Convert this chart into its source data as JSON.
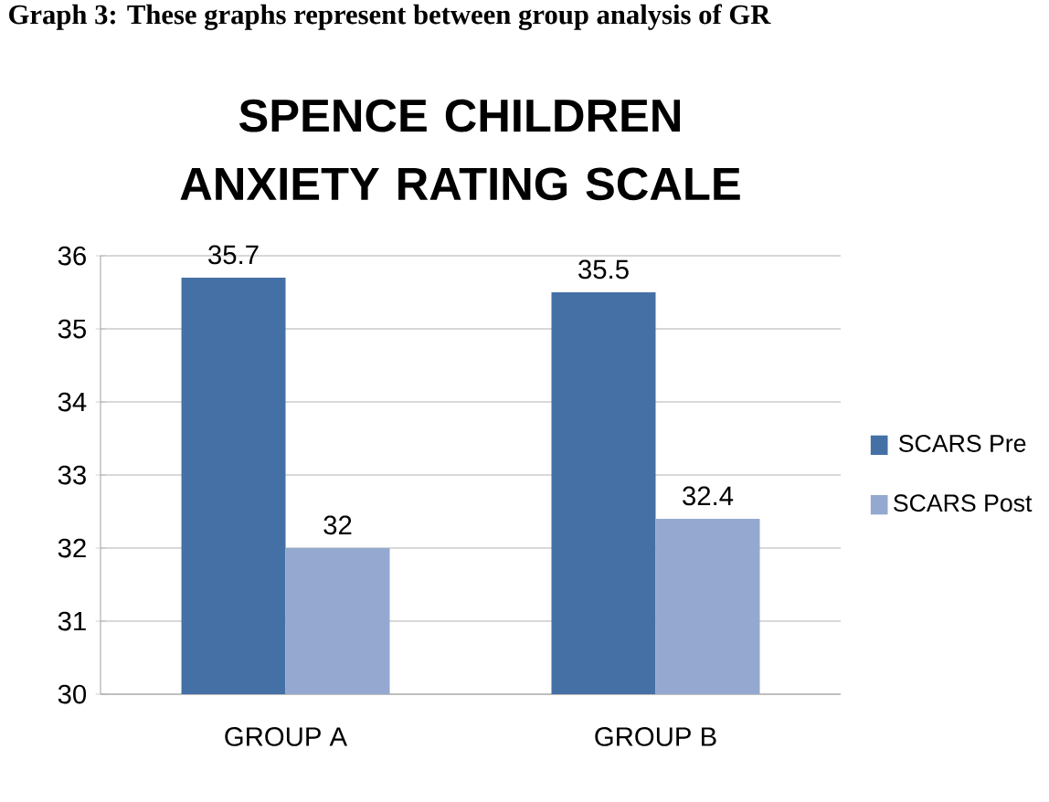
{
  "chart_data": {
    "type": "bar",
    "title": "SPENCE CHILDREN ANXIETY RATING SCALE",
    "annotations": [
      "Graph 3: These graphs represent between group analysis of GR"
    ],
    "categories": [
      "GROUP A",
      "GROUP B"
    ],
    "series": [
      {
        "name": "SCARS Pre",
        "color": "#4470a6",
        "values": [
          35.7,
          35.5
        ]
      },
      {
        "name": "SCARS Post",
        "color": "#95a9d0",
        "values": [
          32,
          32.4
        ]
      }
    ],
    "ylim": [
      30,
      36
    ],
    "yticks": [
      30,
      31,
      32,
      33,
      34,
      35,
      36
    ],
    "grid": "y",
    "legend": "right",
    "data_labels": true
  }
}
